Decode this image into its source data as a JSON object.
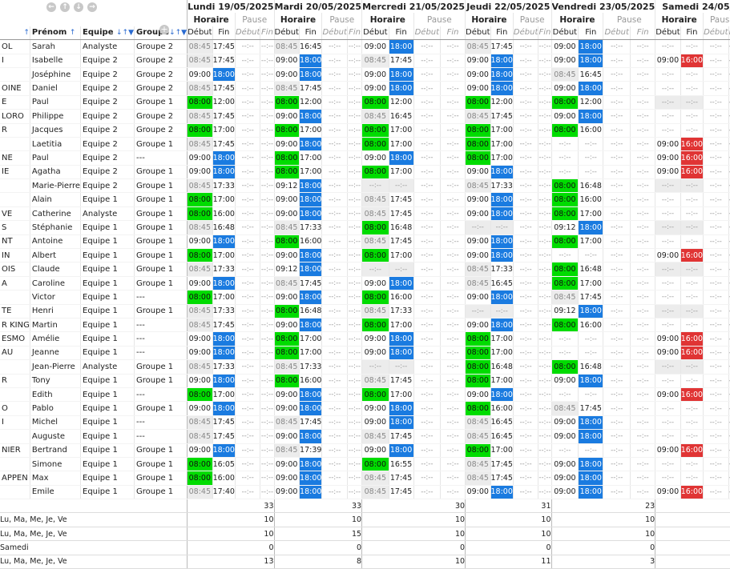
{
  "nav": {
    "buttons": [
      "←",
      "↑",
      "↓",
      "→"
    ],
    "add": "+"
  },
  "columns": {
    "nom_arrow": "↑",
    "prenom": "Prénom",
    "prenom_arrow": "↑",
    "equipe": "Equipe",
    "equipe_sort": "↓↑▼",
    "groupe": "Groupe",
    "groupe_sort": "↓↑▼"
  },
  "days": [
    {
      "label": "Lundi 19/05/2025"
    },
    {
      "label": "Mardi 20/05/2025"
    },
    {
      "label": "Mercredi 21/05/2025"
    },
    {
      "label": "Jeudi 22/05/2025"
    },
    {
      "label": "Vendredi 23/05/2025"
    },
    {
      "label": "Samedi 24/05/"
    }
  ],
  "sub": {
    "horaire": "Horaire",
    "pause": "Pause",
    "debut": "Début",
    "fin": "Fin"
  },
  "rows": [
    {
      "nom": "OL",
      "prenom": "Sarah",
      "equipe": "Analyste",
      "groupe": "Groupe 2",
      "times": [
        "d:08:45",
        "n:17:45",
        "d:08:45",
        "n:16:45",
        "n:09:00",
        "b:18:00",
        "d:08:45",
        "n:17:45",
        "n:09:00",
        "b:18:00",
        "e:--:--",
        "e:--:--"
      ]
    },
    {
      "nom": "I",
      "prenom": "Isabelle",
      "equipe": "Equipe 2",
      "groupe": "Groupe 2",
      "times": [
        "d:08:45",
        "n:17:45",
        "n:09:00",
        "b:18:00",
        "d:08:45",
        "n:17:45",
        "n:09:00",
        "b:18:00",
        "n:09:00",
        "b:18:00",
        "n:09:00",
        "r:16:00"
      ]
    },
    {
      "nom": "",
      "prenom": "Joséphine",
      "equipe": "Equipe 2",
      "groupe": "Groupe 2",
      "times": [
        "n:09:00",
        "b:18:00",
        "n:09:00",
        "b:18:00",
        "n:09:00",
        "b:18:00",
        "n:09:00",
        "b:18:00",
        "d:08:45",
        "n:16:45",
        "e:--:--",
        "e:--:--"
      ]
    },
    {
      "nom": "OINE",
      "prenom": "Daniel",
      "equipe": "Equipe 2",
      "groupe": "Groupe 2",
      "times": [
        "d:08:45",
        "n:17:45",
        "d:08:45",
        "n:17:45",
        "n:09:00",
        "b:18:00",
        "n:09:00",
        "b:18:00",
        "n:09:00",
        "b:18:00",
        "e:--:--",
        "e:--:--"
      ]
    },
    {
      "nom": "E",
      "prenom": "Paul",
      "equipe": "Equipe 2",
      "groupe": "Groupe 1",
      "times": [
        "g:08:00",
        "n:12:00",
        "g:08:00",
        "n:12:00",
        "g:08:00",
        "n:12:00",
        "g:08:00",
        "n:12:00",
        "g:08:00",
        "n:12:00",
        "eg:--:--",
        "eg:--:--"
      ]
    },
    {
      "nom": "LORO",
      "prenom": "Philippe",
      "equipe": "Equipe 2",
      "groupe": "Groupe 2",
      "times": [
        "d:08:45",
        "n:17:45",
        "n:09:00",
        "b:18:00",
        "d:08:45",
        "n:16:45",
        "d:08:45",
        "n:17:45",
        "n:09:00",
        "b:18:00",
        "e:--:--",
        "e:--:--"
      ]
    },
    {
      "nom": "R",
      "prenom": "Jacques",
      "equipe": "Equipe 2",
      "groupe": "Groupe 2",
      "times": [
        "g:08:00",
        "n:17:00",
        "g:08:00",
        "n:17:00",
        "g:08:00",
        "n:17:00",
        "g:08:00",
        "n:17:00",
        "g:08:00",
        "n:16:00",
        "e:--:--",
        "e:--:--"
      ]
    },
    {
      "nom": "",
      "prenom": "Laetitia",
      "equipe": "Equipe 2",
      "groupe": "Groupe 1",
      "times": [
        "d:08:45",
        "n:17:45",
        "n:09:00",
        "b:18:00",
        "g:08:00",
        "n:17:00",
        "g:08:00",
        "n:17:00",
        "e:--:--",
        "e:--:--",
        "n:09:00",
        "r:16:00"
      ]
    },
    {
      "nom": "NE",
      "prenom": "Paul",
      "equipe": "Equipe 2",
      "groupe": "---",
      "times": [
        "n:09:00",
        "b:18:00",
        "g:08:00",
        "n:17:00",
        "n:09:00",
        "b:18:00",
        "g:08:00",
        "n:17:00",
        "e:--:--",
        "e:--:--",
        "n:09:00",
        "r:16:00"
      ]
    },
    {
      "nom": "IE",
      "prenom": "Agatha",
      "equipe": "Equipe 2",
      "groupe": "Groupe 1",
      "times": [
        "n:09:00",
        "b:18:00",
        "g:08:00",
        "n:17:00",
        "g:08:00",
        "n:17:00",
        "n:09:00",
        "b:18:00",
        "e:--:--",
        "e:--:--",
        "n:09:00",
        "r:16:00"
      ]
    },
    {
      "nom": "",
      "prenom": "Marie-Pierre",
      "equipe": "Equipe 2",
      "groupe": "Groupe 1",
      "times": [
        "d:08:45",
        "n:17:33",
        "n:09:12",
        "b:18:00",
        "eg:--:--",
        "eg:--:--",
        "d:08:45",
        "n:17:33",
        "g:08:00",
        "n:16:48",
        "eg:--:--",
        "eg:--:--"
      ]
    },
    {
      "nom": "",
      "prenom": "Alain",
      "equipe": "Equipe 1",
      "groupe": "Groupe 1",
      "times": [
        "g:08:00",
        "n:17:00",
        "n:09:00",
        "b:18:00",
        "d:08:45",
        "n:17:45",
        "n:09:00",
        "b:18:00",
        "g:08:00",
        "n:16:00",
        "e:--:--",
        "e:--:--"
      ]
    },
    {
      "nom": "VE",
      "prenom": "Catherine",
      "equipe": "Analyste",
      "groupe": "Groupe 1",
      "times": [
        "g:08:00",
        "n:16:00",
        "n:09:00",
        "b:18:00",
        "d:08:45",
        "n:17:45",
        "n:09:00",
        "b:18:00",
        "g:08:00",
        "n:17:00",
        "e:--:--",
        "e:--:--"
      ]
    },
    {
      "nom": "S",
      "prenom": "Stéphanie",
      "equipe": "Equipe 1",
      "groupe": "Groupe 1",
      "times": [
        "d:08:45",
        "n:16:48",
        "d:08:45",
        "n:17:33",
        "g:08:00",
        "n:16:48",
        "eg:--:--",
        "eg:--:--",
        "n:09:12",
        "b:18:00",
        "eg:--:--",
        "eg:--:--"
      ]
    },
    {
      "nom": "NT",
      "prenom": "Antoine",
      "equipe": "Equipe 1",
      "groupe": "Groupe 1",
      "times": [
        "n:09:00",
        "b:18:00",
        "g:08:00",
        "n:16:00",
        "d:08:45",
        "n:17:45",
        "n:09:00",
        "b:18:00",
        "g:08:00",
        "n:17:00",
        "e:--:--",
        "e:--:--"
      ]
    },
    {
      "nom": "IN",
      "prenom": "Albert",
      "equipe": "Equipe 1",
      "groupe": "Groupe 1",
      "times": [
        "g:08:00",
        "n:17:00",
        "n:09:00",
        "b:18:00",
        "g:08:00",
        "n:17:00",
        "n:09:00",
        "b:18:00",
        "e:--:--",
        "e:--:--",
        "n:09:00",
        "r:16:00"
      ]
    },
    {
      "nom": "OIS",
      "prenom": "Claude",
      "equipe": "Equipe 1",
      "groupe": "Groupe 1",
      "times": [
        "d:08:45",
        "n:17:33",
        "n:09:12",
        "b:18:00",
        "eg:--:--",
        "eg:--:--",
        "d:08:45",
        "n:17:33",
        "g:08:00",
        "n:16:48",
        "eg:--:--",
        "eg:--:--"
      ]
    },
    {
      "nom": "A",
      "prenom": "Caroline",
      "equipe": "Equipe 1",
      "groupe": "Groupe 1",
      "times": [
        "n:09:00",
        "b:18:00",
        "d:08:45",
        "n:17:45",
        "n:09:00",
        "b:18:00",
        "d:08:45",
        "n:16:45",
        "g:08:00",
        "n:17:00",
        "e:--:--",
        "e:--:--"
      ]
    },
    {
      "nom": "",
      "prenom": "Victor",
      "equipe": "Equipe 1",
      "groupe": "---",
      "times": [
        "g:08:00",
        "n:17:00",
        "n:09:00",
        "b:18:00",
        "g:08:00",
        "n:16:00",
        "n:09:00",
        "b:18:00",
        "d:08:45",
        "n:17:45",
        "e:--:--",
        "e:--:--"
      ]
    },
    {
      "nom": "TE",
      "prenom": "Henri",
      "equipe": "Equipe 1",
      "groupe": "Groupe 1",
      "times": [
        "d:08:45",
        "n:17:33",
        "g:08:00",
        "n:16:48",
        "d:08:45",
        "n:17:33",
        "eg:--:--",
        "eg:--:--",
        "n:09:12",
        "b:18:00",
        "eg:--:--",
        "eg:--:--"
      ]
    },
    {
      "nom": "R KING",
      "prenom": "Martin",
      "equipe": "Equipe 1",
      "groupe": "---",
      "times": [
        "d:08:45",
        "n:17:45",
        "n:09:00",
        "b:18:00",
        "g:08:00",
        "n:17:00",
        "n:09:00",
        "b:18:00",
        "g:08:00",
        "n:16:00",
        "e:--:--",
        "e:--:--"
      ]
    },
    {
      "nom": "ESMO",
      "prenom": "Amélie",
      "equipe": "Equipe 1",
      "groupe": "---",
      "times": [
        "n:09:00",
        "b:18:00",
        "g:08:00",
        "n:17:00",
        "n:09:00",
        "b:18:00",
        "g:08:00",
        "n:17:00",
        "e:--:--",
        "e:--:--",
        "n:09:00",
        "r:16:00"
      ]
    },
    {
      "nom": "AU",
      "prenom": "Jeanne",
      "equipe": "Equipe 1",
      "groupe": "---",
      "times": [
        "n:09:00",
        "b:18:00",
        "g:08:00",
        "n:17:00",
        "n:09:00",
        "b:18:00",
        "g:08:00",
        "n:17:00",
        "e:--:--",
        "e:--:--",
        "n:09:00",
        "r:16:00"
      ]
    },
    {
      "nom": "",
      "prenom": "Jean-Pierre",
      "equipe": "Analyste",
      "groupe": "Groupe 1",
      "times": [
        "d:08:45",
        "n:17:33",
        "d:08:45",
        "n:17:33",
        "eg:--:--",
        "eg:--:--",
        "g:08:00",
        "n:16:48",
        "g:08:00",
        "n:16:48",
        "eg:--:--",
        "eg:--:--"
      ]
    },
    {
      "nom": "R",
      "prenom": "Tony",
      "equipe": "Equipe 1",
      "groupe": "Groupe 1",
      "times": [
        "n:09:00",
        "b:18:00",
        "g:08:00",
        "n:16:00",
        "d:08:45",
        "n:17:45",
        "g:08:00",
        "n:17:00",
        "n:09:00",
        "b:18:00",
        "e:--:--",
        "e:--:--"
      ]
    },
    {
      "nom": "",
      "prenom": "Edith",
      "equipe": "Equipe 1",
      "groupe": "---",
      "times": [
        "g:08:00",
        "n:17:00",
        "n:09:00",
        "b:18:00",
        "g:08:00",
        "n:17:00",
        "n:09:00",
        "b:18:00",
        "e:--:--",
        "e:--:--",
        "n:09:00",
        "r:16:00"
      ]
    },
    {
      "nom": "O",
      "prenom": "Pablo",
      "equipe": "Equipe 1",
      "groupe": "Groupe 1",
      "times": [
        "n:09:00",
        "b:18:00",
        "n:09:00",
        "b:18:00",
        "n:09:00",
        "b:18:00",
        "g:08:00",
        "n:16:00",
        "d:08:45",
        "n:17:45",
        "e:--:--",
        "e:--:--"
      ]
    },
    {
      "nom": "I",
      "prenom": "Michel",
      "equipe": "Equipe 1",
      "groupe": "---",
      "times": [
        "d:08:45",
        "n:17:45",
        "d:08:45",
        "n:17:45",
        "n:09:00",
        "b:18:00",
        "d:08:45",
        "n:16:45",
        "n:09:00",
        "b:18:00",
        "e:--:--",
        "e:--:--"
      ]
    },
    {
      "nom": "",
      "prenom": "Auguste",
      "equipe": "Equipe 1",
      "groupe": "---",
      "times": [
        "d:08:45",
        "n:17:45",
        "n:09:00",
        "b:18:00",
        "d:08:45",
        "n:17:45",
        "d:08:45",
        "n:16:45",
        "n:09:00",
        "b:18:00",
        "e:--:--",
        "e:--:--"
      ]
    },
    {
      "nom": "NIER",
      "prenom": "Bertrand",
      "equipe": "Equipe 1",
      "groupe": "Groupe 1",
      "times": [
        "n:09:00",
        "b:18:00",
        "d:08:45",
        "n:17:39",
        "n:09:00",
        "b:18:00",
        "g:08:00",
        "n:17:00",
        "e:--:--",
        "e:--:--",
        "n:09:00",
        "r:16:00"
      ]
    },
    {
      "nom": "",
      "prenom": "Simone",
      "equipe": "Equipe 1",
      "groupe": "Groupe 1",
      "times": [
        "g:08:00",
        "n:16:05",
        "n:09:00",
        "b:18:00",
        "g:08:00",
        "n:16:55",
        "d:08:45",
        "n:17:45",
        "n:09:00",
        "b:18:00",
        "e:--:--",
        "e:--:--"
      ]
    },
    {
      "nom": "APPEN",
      "prenom": "Max",
      "equipe": "Equipe 1",
      "groupe": "Groupe 1",
      "times": [
        "g:08:00",
        "n:16:00",
        "n:09:00",
        "b:18:00",
        "d:08:45",
        "n:17:45",
        "d:08:45",
        "n:17:45",
        "n:09:00",
        "b:18:00",
        "e:--:--",
        "e:--:--"
      ]
    },
    {
      "nom": "",
      "prenom": "Emile",
      "equipe": "Equipe 1",
      "groupe": "Groupe 1",
      "times": [
        "d:08:45",
        "n:17:40",
        "n:09:00",
        "b:18:00",
        "d:08:45",
        "n:17:45",
        "n:09:00",
        "b:18:00",
        "n:09:00",
        "b:18:00",
        "n:09:00",
        "r:16:00"
      ]
    }
  ],
  "footer": [
    {
      "label": "",
      "values": [
        "33",
        "33",
        "30",
        "31",
        "23",
        ""
      ]
    },
    {
      "label": "Lu, Ma, Me, Je, Ve",
      "values": [
        "10",
        "10",
        "10",
        "10",
        "10",
        ""
      ]
    },
    {
      "label": "Lu, Ma, Me, Je, Ve",
      "values": [
        "10",
        "15",
        "10",
        "10",
        "10",
        ""
      ]
    },
    {
      "label": "Samedi",
      "values": [
        "0",
        "0",
        "0",
        "0",
        "0",
        ""
      ]
    },
    {
      "label": "Lu, Ma, Me, Je, Ve",
      "values": [
        "13",
        "8",
        "10",
        "11",
        "3",
        ""
      ]
    }
  ]
}
